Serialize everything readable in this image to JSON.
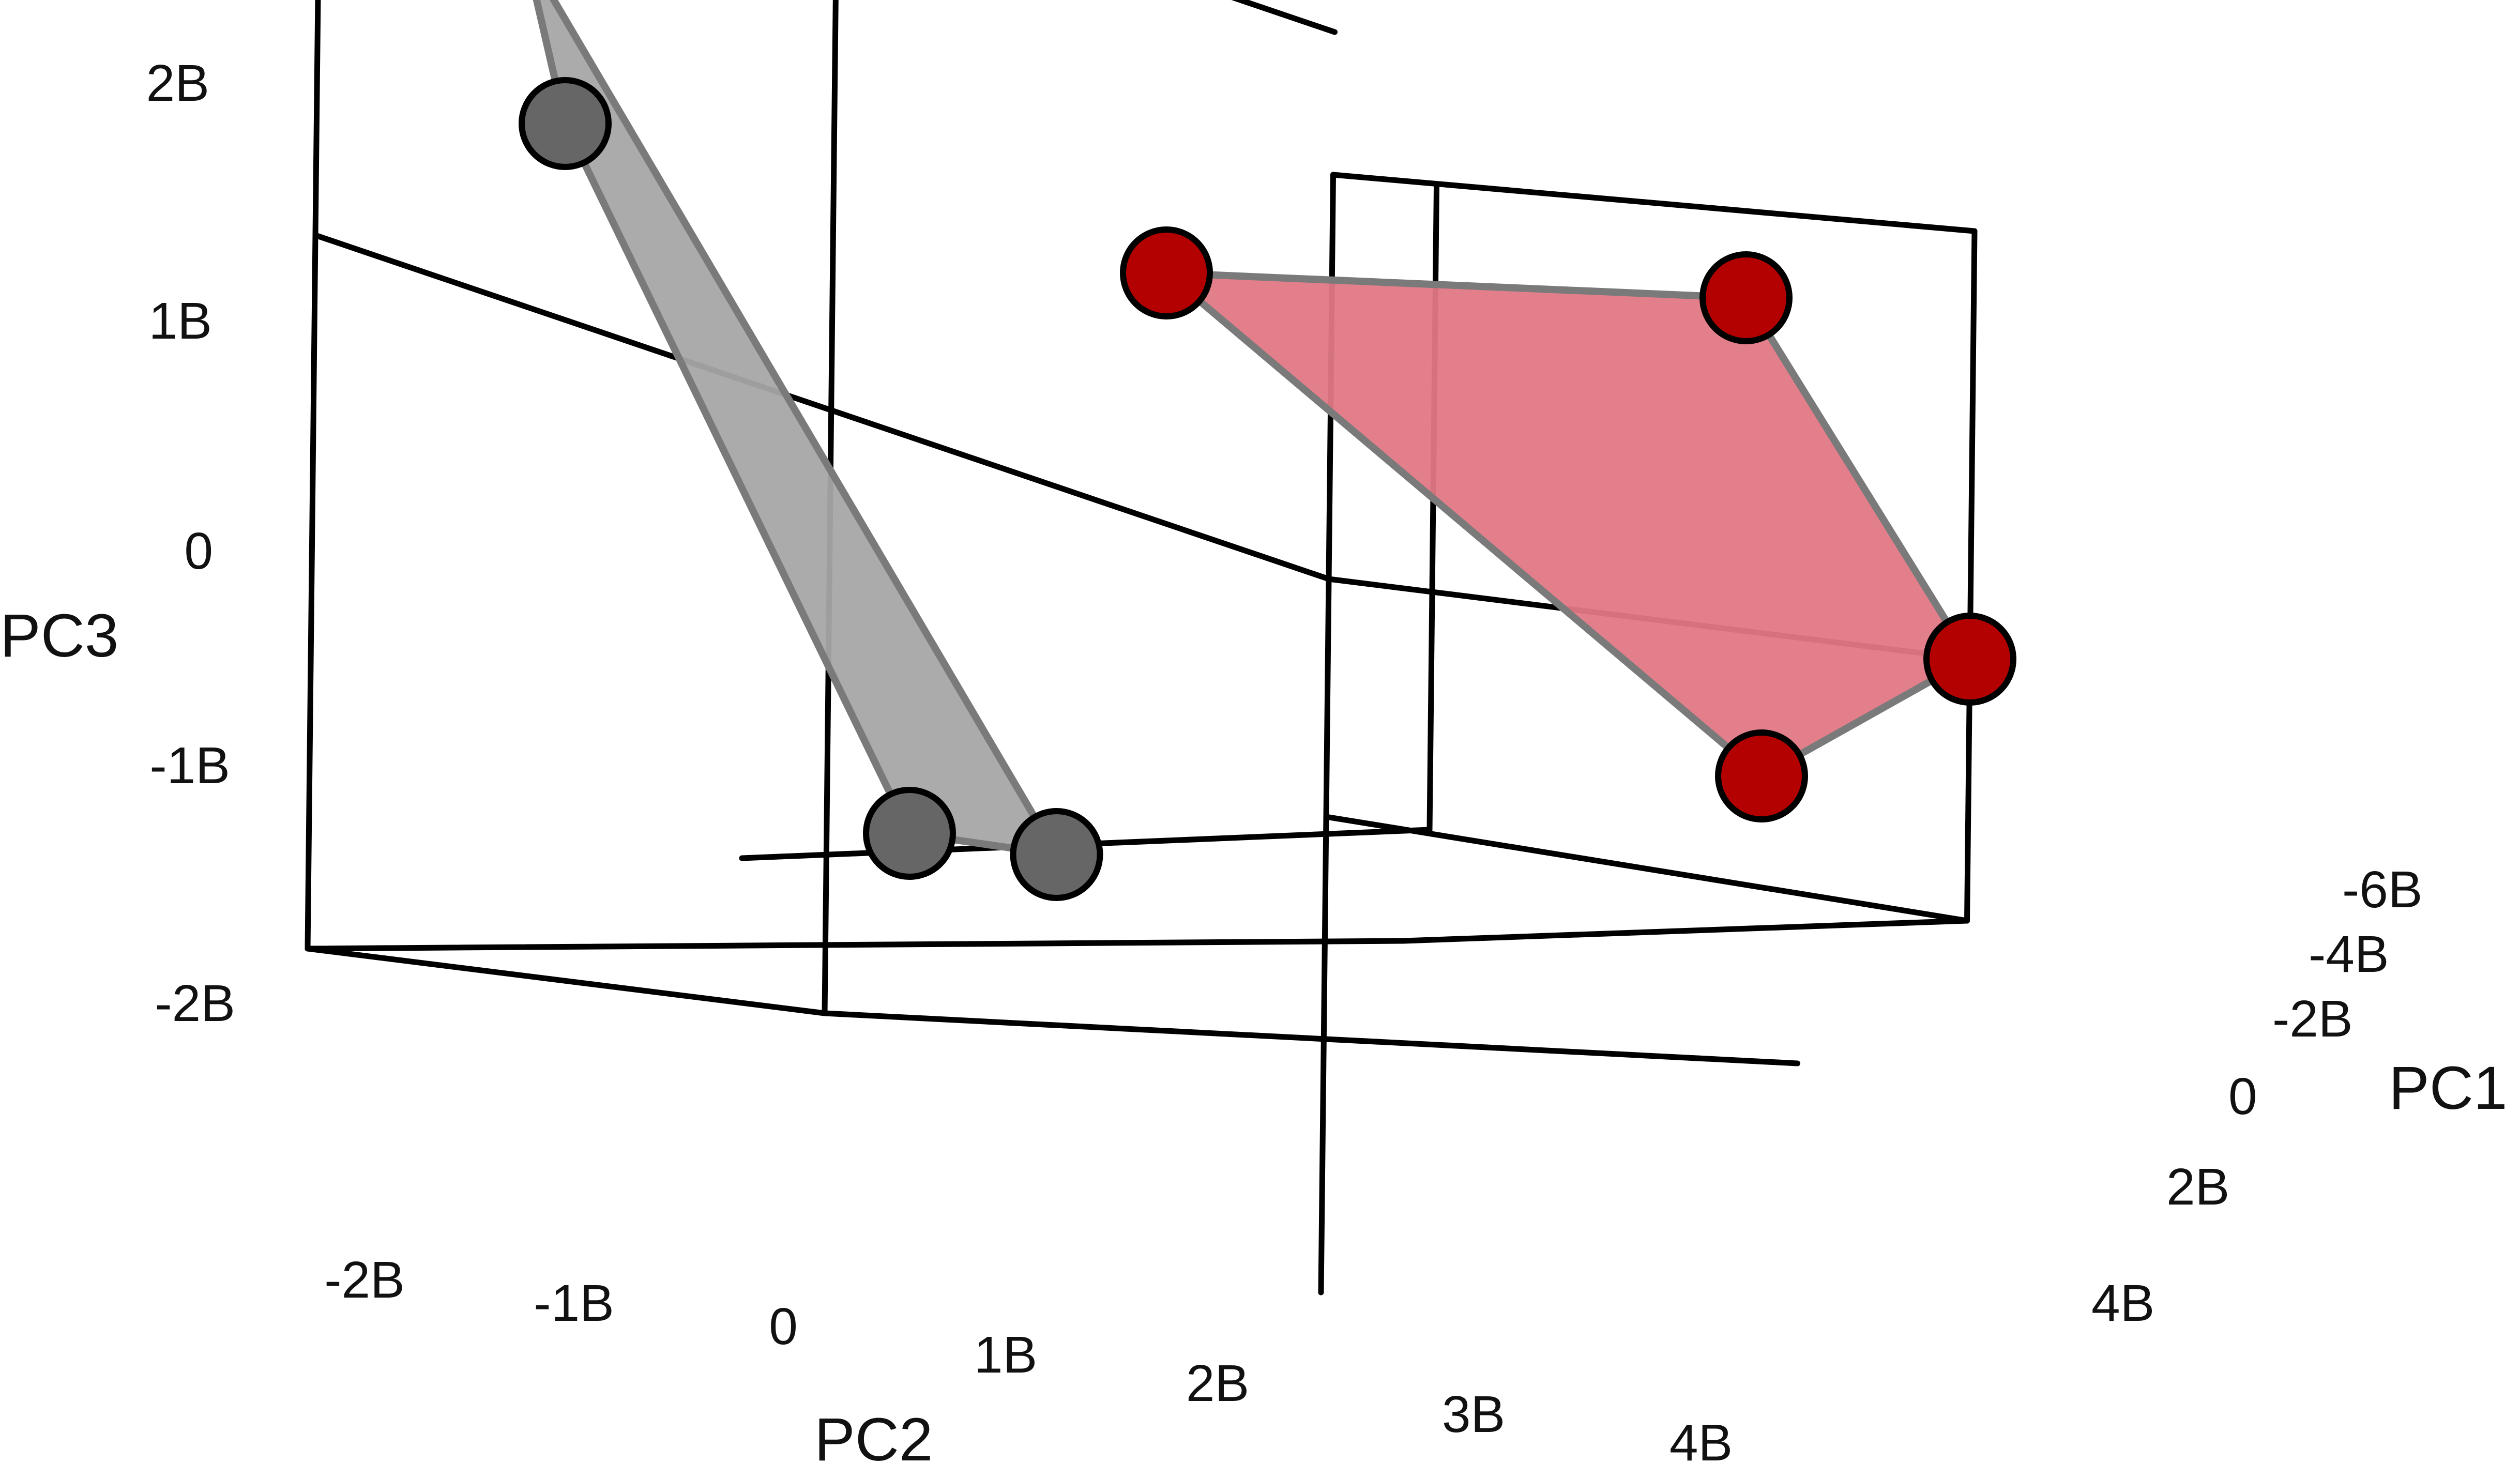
{
  "chart_data": {
    "type": "scatter",
    "projection": "3d",
    "title": "",
    "axes": {
      "PC1": {
        "label": "PC1",
        "range": [
          -6,
          4
        ],
        "tick_values": [
          -6,
          -4,
          -2,
          0,
          2,
          4
        ],
        "ticks": [
          "-6B",
          "-4B",
          "-2B",
          "0",
          "2B",
          "4B"
        ]
      },
      "PC2": {
        "label": "PC2",
        "range": [
          -2.5,
          4.5
        ],
        "tick_values": [
          -2,
          -1,
          0,
          1,
          2,
          3,
          4
        ],
        "ticks": [
          "-2B",
          "-1B",
          "0",
          "1B",
          "2B",
          "3B",
          "4B"
        ]
      },
      "PC3": {
        "label": "PC3",
        "range": [
          -3,
          2.3
        ],
        "tick_values": [
          2,
          1,
          0,
          -1,
          -2
        ],
        "ticks": [
          "2B",
          "1B",
          "0",
          "-1B",
          "-2B"
        ]
      }
    },
    "grid": true,
    "legend": "none",
    "series": [
      {
        "color": "#b30000",
        "hull_color": "#e07885",
        "points": [
          {
            "pc1": -6.0,
            "pc2": 1.0,
            "pc3": 1.2
          },
          {
            "pc1": -6.0,
            "pc2": 3.8,
            "pc3": 1.4
          },
          {
            "pc1": -6.0,
            "pc2": 4.9,
            "pc3": 0.0
          },
          {
            "pc1": -6.0,
            "pc2": 3.9,
            "pc3": -0.6
          }
        ]
      },
      {
        "color": "#666666",
        "hull_color": "#a6a6a6",
        "points": [
          {
            "pc1": 0.0,
            "pc2": -1.5,
            "pc3": 1.3
          },
          {
            "pc1": 0.0,
            "pc2": -1.3,
            "pc3": 0.6
          },
          {
            "pc1": 0.0,
            "pc2": 0.4,
            "pc3": -2.2
          },
          {
            "pc1": -6.0,
            "pc2": 0.5,
            "pc3": -1.3
          }
        ]
      }
    ]
  }
}
